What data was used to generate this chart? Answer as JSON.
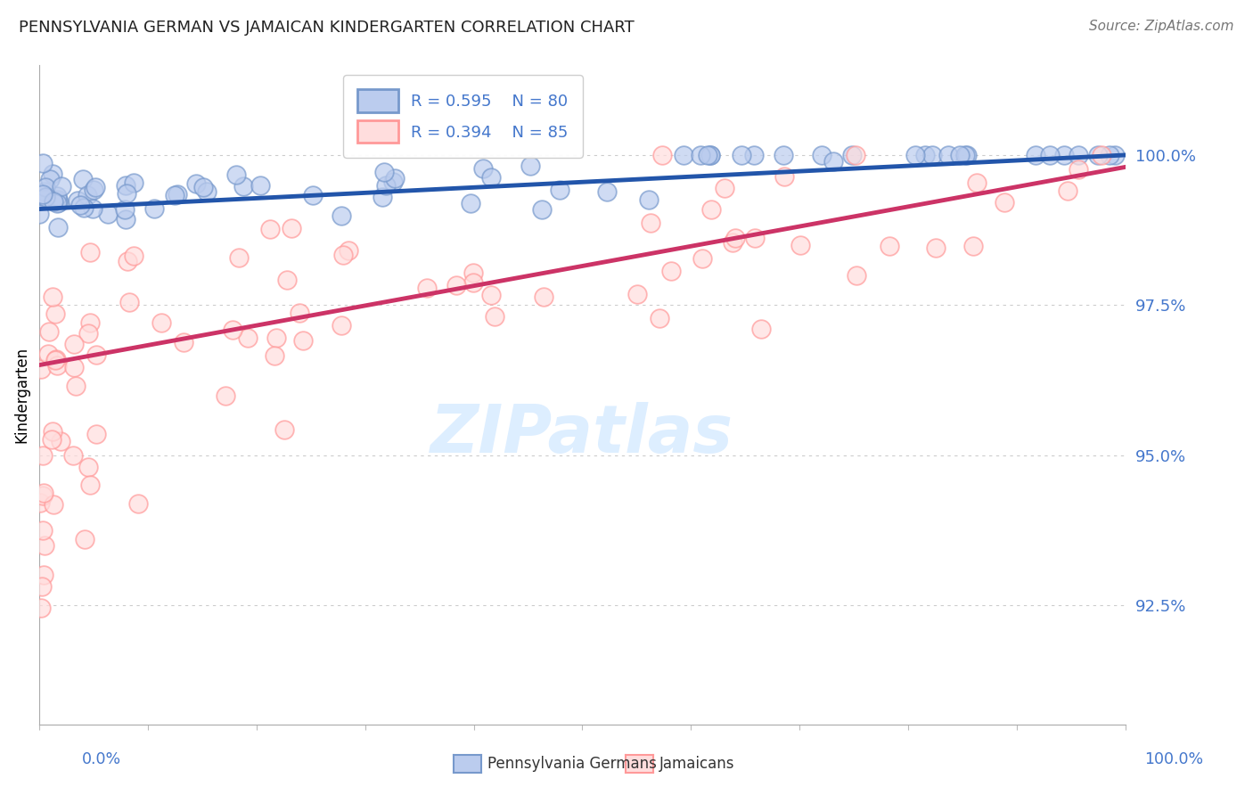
{
  "title": "PENNSYLVANIA GERMAN VS JAMAICAN KINDERGARTEN CORRELATION CHART",
  "source": "Source: ZipAtlas.com",
  "ylabel": "Kindergarten",
  "blue_R": 0.595,
  "blue_N": 80,
  "pink_R": 0.394,
  "pink_N": 85,
  "blue_color": "#7799CC",
  "pink_color": "#FF9999",
  "blue_face_color": "#BBCCEE",
  "pink_face_color": "#FFDDDD",
  "blue_trend_color": "#2255AA",
  "pink_trend_color": "#CC3366",
  "legend_blue": "Pennsylvania Germans",
  "legend_pink": "Jamaicans",
  "xmin": 0.0,
  "xmax": 100.0,
  "ymin": 90.5,
  "ymax": 101.5,
  "ytick_vals": [
    92.5,
    95.0,
    97.5,
    100.0
  ],
  "grid_color": "#CCCCCC",
  "tick_label_color": "#4477CC",
  "watermark_color": "#DDEEFF",
  "title_color": "#222222",
  "source_color": "#777777",
  "blue_line_start_y": 99.1,
  "blue_line_end_y": 100.0,
  "pink_line_start_y": 96.5,
  "pink_line_end_y": 99.8
}
